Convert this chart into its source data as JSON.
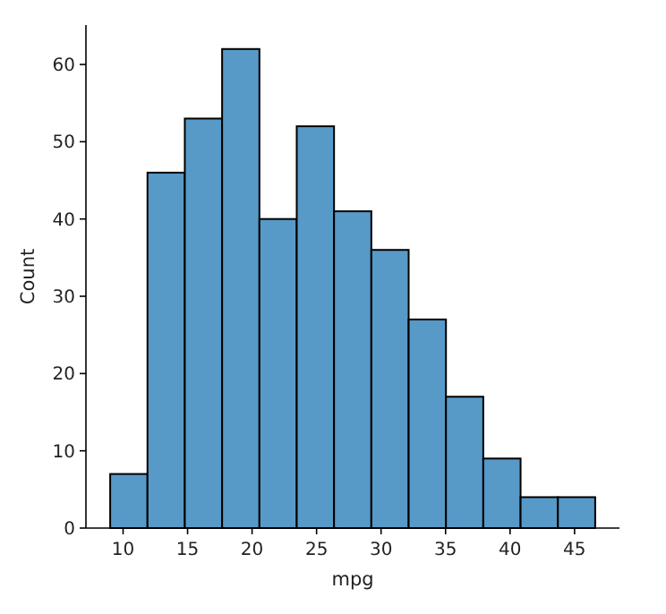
{
  "chart_data": {
    "type": "histogram",
    "xlabel": "mpg",
    "ylabel": "Count",
    "color": "#5799c7",
    "bins": [
      9,
      11.892,
      14.785,
      17.677,
      20.569,
      23.462,
      26.354,
      29.246,
      32.138,
      35.031,
      37.923,
      40.815,
      43.708,
      46.6
    ],
    "values": [
      7,
      46,
      53,
      62,
      40,
      52,
      41,
      36,
      27,
      17,
      9,
      4,
      4
    ],
    "xlim": [
      7.12,
      48.48
    ],
    "xticks": [
      10,
      15,
      20,
      25,
      30,
      35,
      40,
      45
    ],
    "ylim": [
      0,
      65.1
    ],
    "yticks": [
      0,
      10,
      20,
      30,
      40,
      50,
      60
    ]
  }
}
